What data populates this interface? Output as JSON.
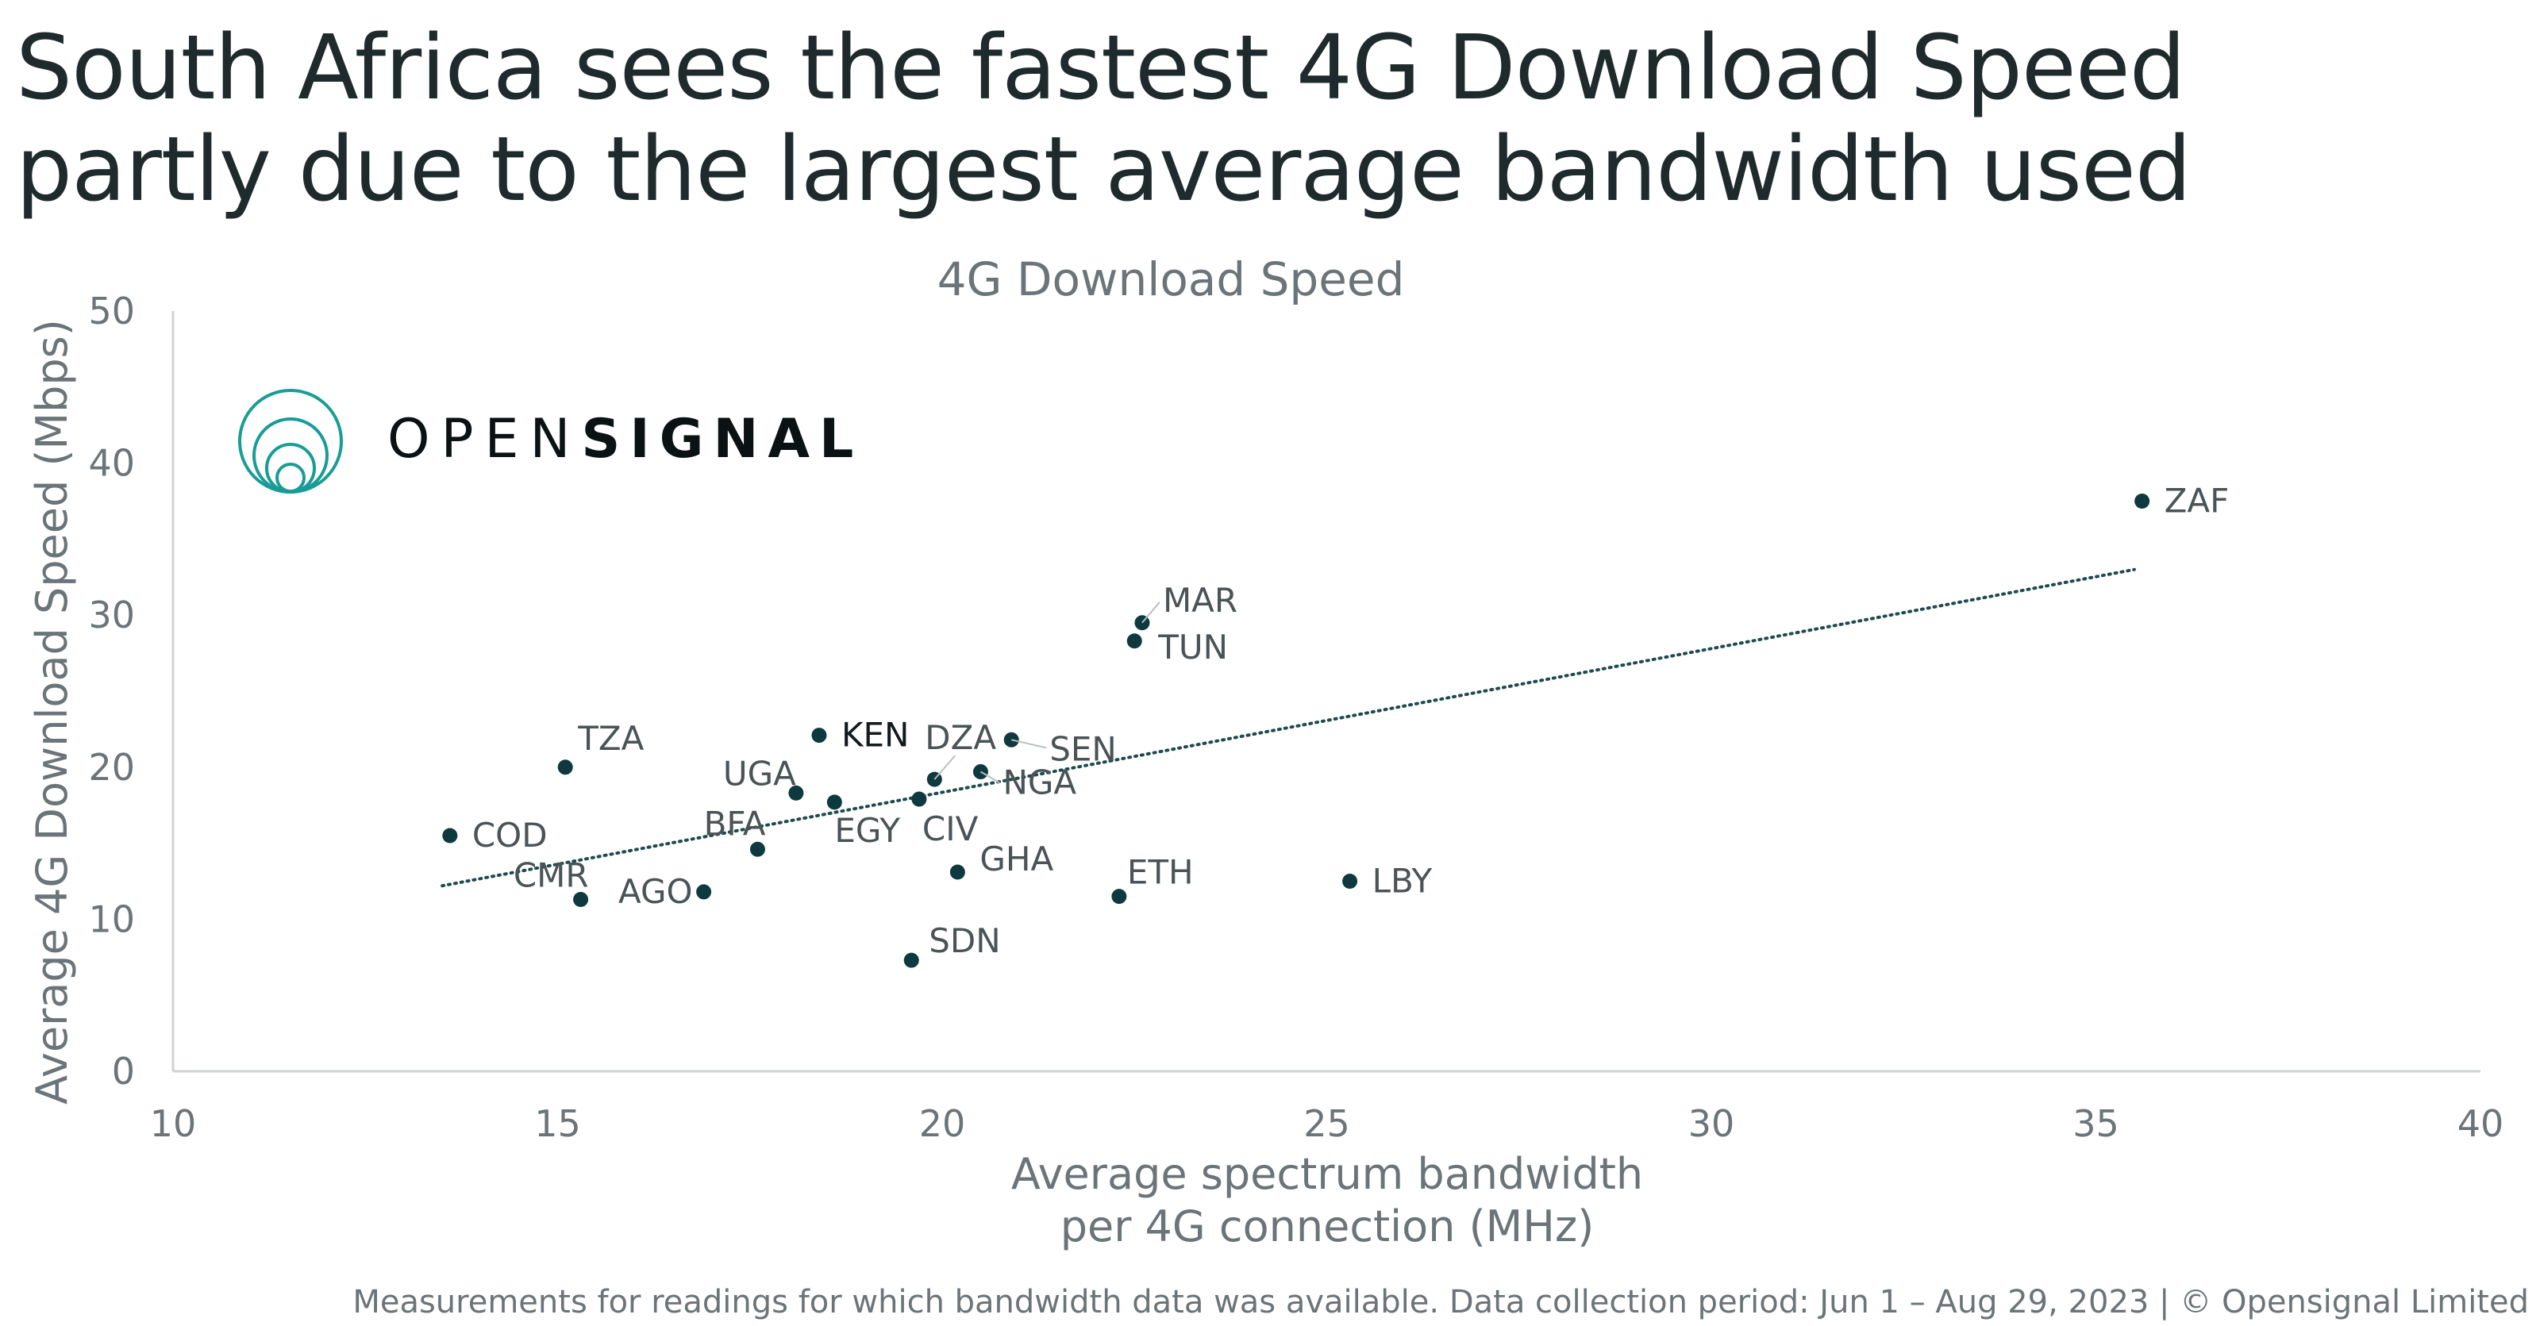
{
  "headline": {
    "line1": "South Africa sees the fastest 4G Download Speed",
    "line2": "partly due to the largest average bandwidth used"
  },
  "logo": {
    "light": "OPEN",
    "bold": "SIGNAL"
  },
  "footnote": "Measurements for readings for which bandwidth data was available. Data collection period: Jun 1 – Aug 29, 2023 | © Opensignal Limited",
  "colors": {
    "point": "#0e3a3f",
    "axis_text": "#6b7478",
    "label_text": "#4a5356",
    "trend": "#1f4a4e",
    "logo_teal": "#1a9c96"
  },
  "chart_data": {
    "type": "scatter",
    "title": "4G Download Speed",
    "xlabel_lines": [
      "Average spectrum bandwidth",
      "per 4G connection (MHz)"
    ],
    "ylabel": "Average 4G Download Speed (Mbps)",
    "xlim": [
      10,
      40
    ],
    "ylim": [
      0,
      50
    ],
    "x_ticks": [
      10,
      15,
      20,
      25,
      30,
      35,
      40
    ],
    "y_ticks": [
      0,
      10,
      20,
      30,
      40,
      50
    ],
    "trendline": {
      "style": "dotted",
      "x": [
        13.5,
        35.5
      ],
      "y": [
        12.2,
        33.0
      ]
    },
    "points": [
      {
        "label": "ZAF",
        "x": 35.6,
        "y": 37.5
      },
      {
        "label": "MAR",
        "x": 22.6,
        "y": 29.5
      },
      {
        "label": "TUN",
        "x": 22.5,
        "y": 28.3
      },
      {
        "label": "KEN",
        "x": 18.4,
        "y": 22.1
      },
      {
        "label": "SEN",
        "x": 20.9,
        "y": 21.8
      },
      {
        "label": "TZA",
        "x": 15.1,
        "y": 20.0
      },
      {
        "label": "NGA",
        "x": 20.5,
        "y": 19.7
      },
      {
        "label": "DZA",
        "x": 19.9,
        "y": 19.2
      },
      {
        "label": "UGA",
        "x": 18.1,
        "y": 18.3
      },
      {
        "label": "CIV",
        "x": 19.7,
        "y": 17.9
      },
      {
        "label": "EGY",
        "x": 18.6,
        "y": 17.7
      },
      {
        "label": "COD",
        "x": 13.6,
        "y": 15.5
      },
      {
        "label": "BFA",
        "x": 17.6,
        "y": 14.6
      },
      {
        "label": "GHA",
        "x": 20.2,
        "y": 13.1
      },
      {
        "label": "LBY",
        "x": 25.3,
        "y": 12.5
      },
      {
        "label": "AGO",
        "x": 16.9,
        "y": 11.8
      },
      {
        "label": "ETH",
        "x": 22.3,
        "y": 11.5
      },
      {
        "label": "CMR",
        "x": 15.3,
        "y": 11.3
      },
      {
        "label": "SDN",
        "x": 19.6,
        "y": 7.3
      }
    ]
  }
}
